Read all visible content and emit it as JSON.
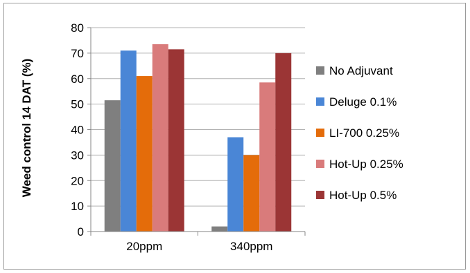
{
  "chart_data": {
    "type": "bar",
    "categories": [
      "20ppm",
      "340ppm"
    ],
    "series": [
      {
        "name": "No Adjuvant",
        "values": [
          51.5,
          2
        ],
        "color": "#7f7f7f"
      },
      {
        "name": "Deluge 0.1%",
        "values": [
          71,
          37
        ],
        "color": "#4a86d6"
      },
      {
        "name": "LI-700 0.25%",
        "values": [
          61,
          30
        ],
        "color": "#e46c0a"
      },
      {
        "name": "Hot-Up 0.25%",
        "values": [
          73.5,
          58.5
        ],
        "color": "#d97b7b"
      },
      {
        "name": "Hot-Up 0.5%",
        "values": [
          71.5,
          70
        ],
        "color": "#9b3535"
      }
    ],
    "ylabel": "Weed control 14 DAT (%)",
    "xlabel": "",
    "ylim": [
      0,
      80
    ],
    "yticks": [
      "0",
      "10",
      "20",
      "30",
      "40",
      "50",
      "60",
      "70",
      "80"
    ],
    "grid": true,
    "legend_position": "right"
  }
}
